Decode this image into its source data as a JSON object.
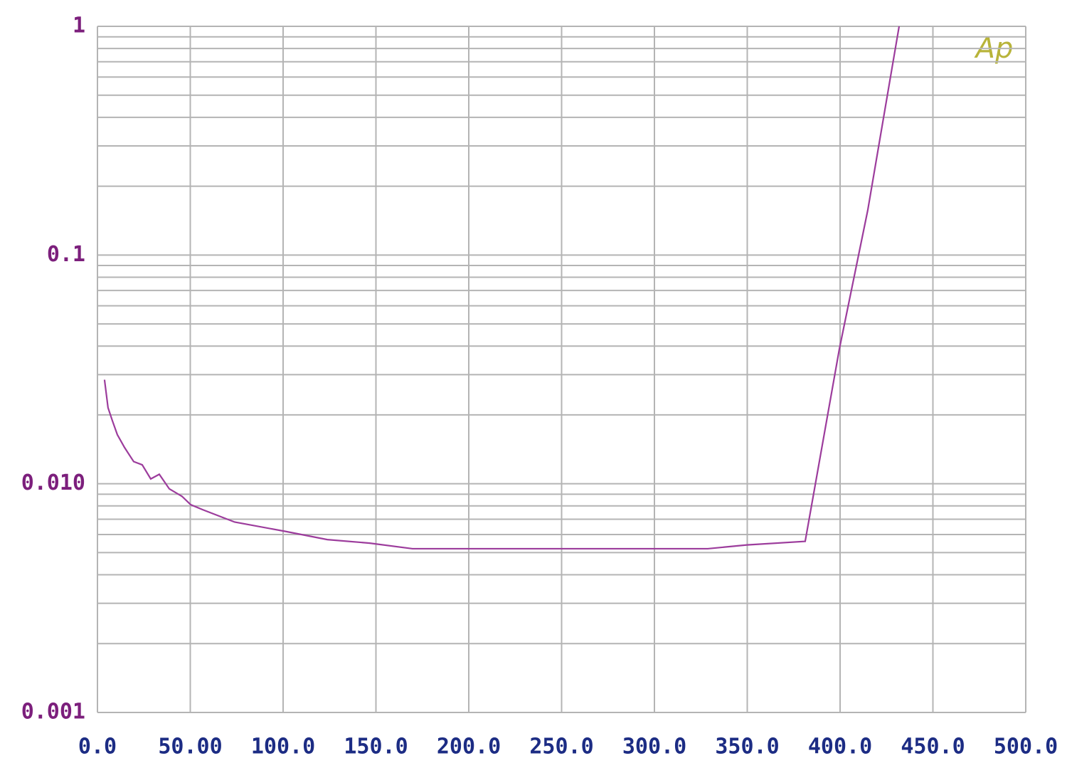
{
  "chart_data": {
    "type": "line",
    "logo": "Ap",
    "series": [
      {
        "color": "#9c3c9c",
        "x": [
          3.8,
          5.7,
          8.0,
          10.7,
          14.6,
          19.5,
          24.1,
          28.7,
          33.3,
          38.7,
          45.6,
          50.2,
          56.7,
          73.9,
          100.8,
          123.8,
          146.7,
          169.7,
          185,
          215.7,
          273,
          328.7,
          349.8,
          381.2,
          399.6,
          414.9,
          431.8
        ],
        "values": [
          0.0285,
          0.0215,
          0.0189,
          0.0164,
          0.0144,
          0.0125,
          0.0121,
          0.0105,
          0.011,
          0.0095,
          0.0088,
          0.0081,
          0.0077,
          0.0068,
          0.0062,
          0.0057,
          0.0055,
          0.0052,
          0.0052,
          0.0052,
          0.0052,
          0.0052,
          0.0054,
          0.0056,
          0.0388,
          0.157,
          1.0
        ]
      }
    ],
    "xlim": [
      0,
      500
    ],
    "xticks": [
      {
        "value": 0,
        "label": "0.0"
      },
      {
        "value": 50,
        "label": "50.00"
      },
      {
        "value": 100,
        "label": "100.0"
      },
      {
        "value": 150,
        "label": "150.0"
      },
      {
        "value": 200,
        "label": "200.0"
      },
      {
        "value": 250,
        "label": "250.0"
      },
      {
        "value": 300,
        "label": "300.0"
      },
      {
        "value": 350,
        "label": "350.0"
      },
      {
        "value": 400,
        "label": "400.0"
      },
      {
        "value": 450,
        "label": "450.0"
      },
      {
        "value": 500,
        "label": "500.0"
      }
    ],
    "ylim": [
      0.001,
      1
    ],
    "yscale": "log",
    "yticks": [
      0.001,
      {
        "value": 0.01,
        "label": "0.010"
      },
      0.1,
      1
    ],
    "yticks_minor": [
      0.002,
      0.003,
      0.004,
      0.005,
      0.006,
      0.007,
      0.008,
      0.009,
      0.02,
      0.03,
      0.04,
      0.05,
      0.06,
      0.07,
      0.08,
      0.09,
      0.2,
      0.3,
      0.4,
      0.5,
      0.6,
      0.7,
      0.8,
      0.9
    ],
    "grid": true
  }
}
